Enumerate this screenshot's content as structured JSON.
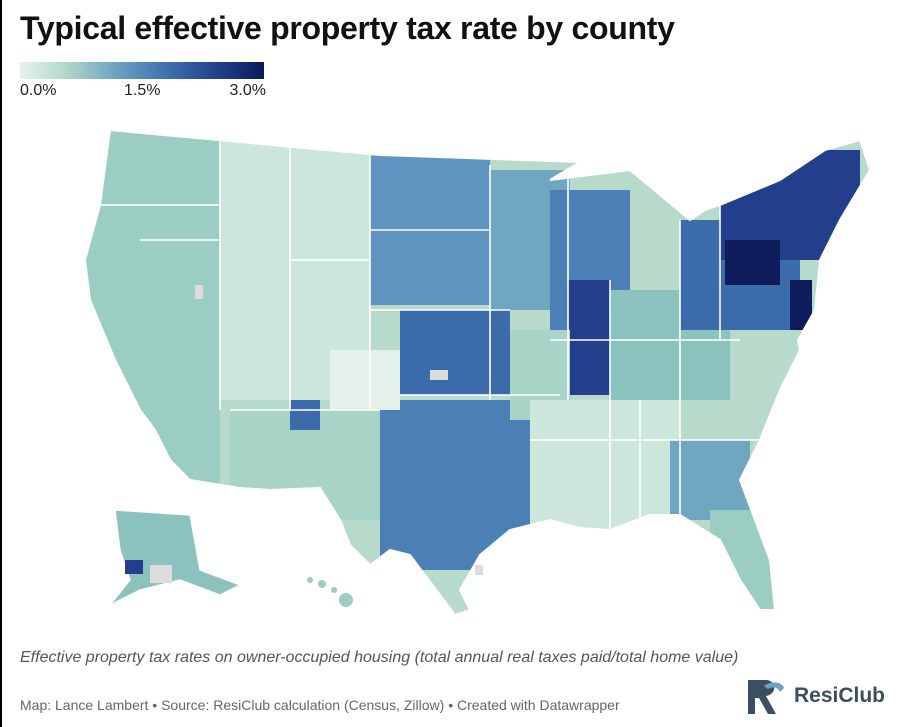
{
  "title": "Typical effective property tax rate by county",
  "legend": {
    "min_label": "0.0%",
    "mid_label": "1.5%",
    "max_label": "3.0%",
    "colors": [
      "#e6f3ec",
      "#b3d9cb",
      "#6aa3bf",
      "#3d72ad",
      "#1f3f8a",
      "#0b1a5a"
    ]
  },
  "caption": "Effective property tax rates on owner-occupied housing (total annual real taxes paid/total home value)",
  "source": "Map: Lance Lambert • Source: ResiClub calculation (Census, Zillow) • Created with Datawrapper",
  "brand": {
    "name": "ResiClub",
    "logo_text": "RC"
  },
  "map_colors": {
    "lowest": "#e4f1ea",
    "low": "#b7dacb",
    "mid_low": "#8cc2bd",
    "mid": "#5d95c0",
    "mid_high": "#3c6bab",
    "high": "#233f8c",
    "highest": "#0e1c5c",
    "no_data": "#dcdcdc",
    "state_border": "#ffffff"
  }
}
